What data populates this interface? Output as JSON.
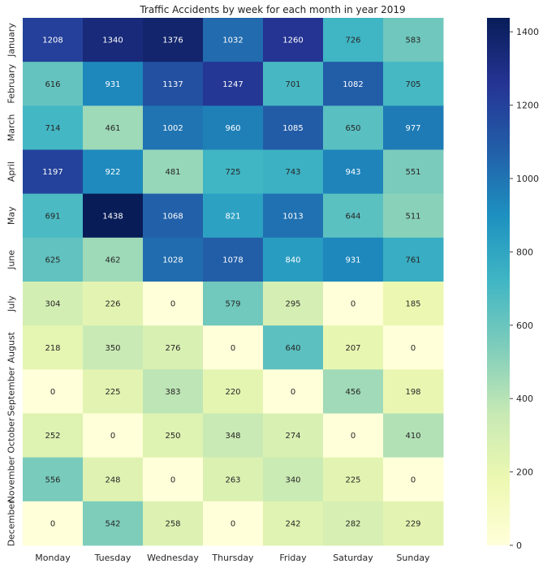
{
  "chart_data": {
    "type": "heatmap",
    "title": "Traffic Accidents by week for each month in year 2019",
    "xlabel": "",
    "ylabel": "",
    "x_categories": [
      "Monday",
      "Tuesday",
      "Wednesday",
      "Thursday",
      "Friday",
      "Saturday",
      "Sunday"
    ],
    "y_categories": [
      "January",
      "February",
      "March",
      "April",
      "May",
      "June",
      "July",
      "August",
      "September",
      "October",
      "November",
      "December"
    ],
    "values": [
      [
        1208,
        1340,
        1376,
        1032,
        1260,
        726,
        583
      ],
      [
        616,
        931,
        1137,
        1247,
        701,
        1082,
        705
      ],
      [
        714,
        461,
        1002,
        960,
        1085,
        650,
        977
      ],
      [
        1197,
        922,
        481,
        725,
        743,
        943,
        551
      ],
      [
        691,
        1438,
        1068,
        821,
        1013,
        644,
        511
      ],
      [
        625,
        462,
        1028,
        1078,
        840,
        931,
        761
      ],
      [
        304,
        226,
        0,
        579,
        295,
        0,
        185
      ],
      [
        218,
        350,
        276,
        0,
        640,
        207,
        0
      ],
      [
        0,
        225,
        383,
        220,
        0,
        456,
        198
      ],
      [
        252,
        0,
        250,
        348,
        274,
        0,
        410
      ],
      [
        556,
        248,
        0,
        263,
        340,
        225,
        0
      ],
      [
        0,
        542,
        258,
        0,
        242,
        282,
        229
      ]
    ],
    "colorbar": {
      "min": 0,
      "max": 1438,
      "ticks": [
        0,
        200,
        400,
        600,
        800,
        1000,
        1200,
        1400
      ],
      "colormap": "YlGnBu"
    }
  }
}
